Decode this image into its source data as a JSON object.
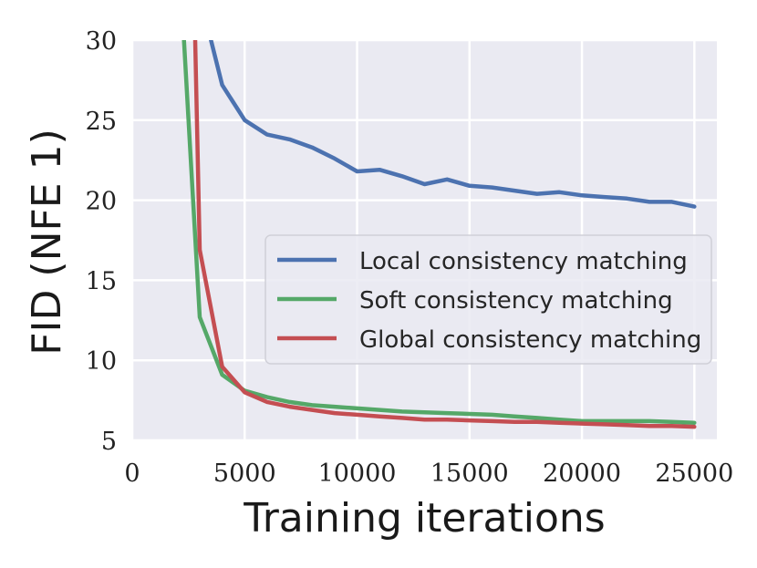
{
  "chart_data": {
    "type": "line",
    "title": "",
    "xlabel": "Training iterations",
    "ylabel": "FID (NFE 1)",
    "xlim": [
      0,
      26000
    ],
    "ylim": [
      5,
      30
    ],
    "xticks": [
      0,
      5000,
      10000,
      15000,
      20000,
      25000
    ],
    "xtick_labels": [
      "0",
      "5000",
      "10000",
      "15000",
      "20000",
      "25000"
    ],
    "yticks": [
      5,
      10,
      15,
      20,
      25,
      30
    ],
    "ytick_labels": [
      "5",
      "10",
      "15",
      "20",
      "25",
      "30"
    ],
    "grid": true,
    "legend_position": "center-right",
    "background": "#eaeaf2",
    "series": [
      {
        "name": "Local consistency matching",
        "color": "#4c72b0",
        "x": [
          3500,
          4000,
          5000,
          6000,
          7000,
          8000,
          9000,
          10000,
          11000,
          12000,
          13000,
          14000,
          15000,
          16000,
          17000,
          18000,
          19000,
          20000,
          21000,
          22000,
          23000,
          24000,
          25000
        ],
        "y": [
          30,
          27.2,
          25.0,
          24.1,
          23.8,
          23.3,
          22.6,
          21.8,
          21.9,
          21.5,
          21.0,
          21.3,
          20.9,
          20.8,
          20.6,
          20.4,
          20.5,
          20.3,
          20.2,
          20.1,
          19.9,
          19.9,
          19.6
        ]
      },
      {
        "name": "Soft consistency matching",
        "color": "#55a868",
        "x": [
          2300,
          3000,
          4000,
          5000,
          6000,
          7000,
          8000,
          9000,
          10000,
          11000,
          12000,
          13000,
          14000,
          15000,
          16000,
          17000,
          18000,
          19000,
          20000,
          21000,
          22000,
          23000,
          24000,
          25000
        ],
        "y": [
          30,
          12.7,
          9.1,
          8.1,
          7.7,
          7.4,
          7.2,
          7.1,
          7.0,
          6.9,
          6.8,
          6.75,
          6.7,
          6.65,
          6.6,
          6.5,
          6.4,
          6.3,
          6.2,
          6.2,
          6.2,
          6.2,
          6.15,
          6.1
        ]
      },
      {
        "name": "Global consistency matching",
        "color": "#c44e52",
        "x": [
          2800,
          3000,
          4000,
          5000,
          6000,
          7000,
          8000,
          9000,
          10000,
          11000,
          12000,
          13000,
          14000,
          15000,
          16000,
          17000,
          18000,
          19000,
          20000,
          21000,
          22000,
          23000,
          24000,
          25000
        ],
        "y": [
          30,
          16.9,
          9.6,
          8.0,
          7.4,
          7.1,
          6.9,
          6.7,
          6.6,
          6.5,
          6.4,
          6.3,
          6.3,
          6.25,
          6.2,
          6.15,
          6.15,
          6.1,
          6.05,
          6.0,
          5.95,
          5.9,
          5.9,
          5.85
        ]
      }
    ]
  }
}
